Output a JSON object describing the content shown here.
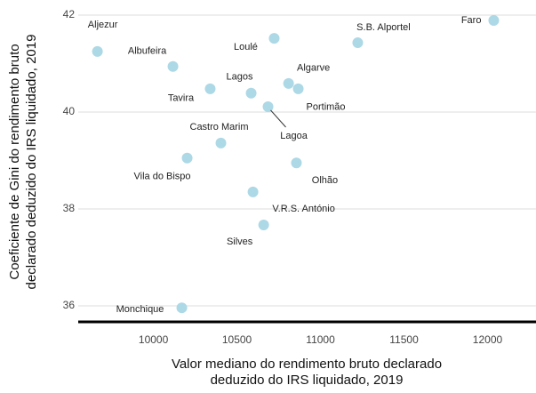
{
  "chart_data": {
    "type": "scatter",
    "xlabel": [
      "Valor mediano do rendimento bruto declarado",
      "deduzido do IRS liquidado, 2019"
    ],
    "ylabel": [
      "Coeficiente de Gini do rendimento bruto",
      "declarado deduzido do IRS liquidado, 2019"
    ],
    "labels": [
      "Aljezur",
      "Albufeira",
      "Loulé",
      "S.B. Alportel",
      "Faro",
      "Tavira",
      "Lagos",
      "Algarve",
      "Portimão",
      "Lagoa",
      "Castro Marim",
      "Vila do Bispo",
      "Olhão",
      "V.R.S. António",
      "Silves",
      "Monchique"
    ],
    "x": [
      9665,
      10117,
      10723,
      11223,
      12037,
      10340,
      10585,
      10809,
      10867,
      10686,
      10404,
      10202,
      10856,
      10596,
      10660,
      10170
    ],
    "values": [
      41.25,
      40.94,
      41.52,
      41.43,
      41.89,
      40.48,
      40.39,
      40.59,
      40.48,
      40.11,
      39.36,
      39.05,
      38.95,
      38.35,
      37.67,
      35.96
    ],
    "color": "#add8e6",
    "xlim": [
      9550,
      12290
    ],
    "xticks": [
      10000,
      10500,
      11000,
      11500,
      12000
    ],
    "ylim": [
      35.67,
      42.22
    ],
    "yticks": [
      36,
      38,
      40,
      42
    ],
    "grid": true
  }
}
